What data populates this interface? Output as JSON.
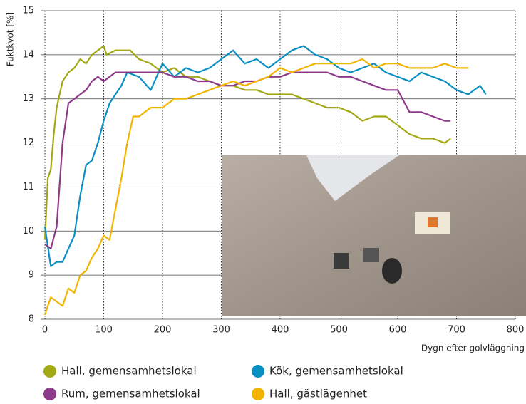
{
  "chart_data": {
    "type": "line",
    "y_label": "Fuktkvot [%]",
    "x_label": "Dygn efter golvläggning",
    "xlim": [
      0,
      800
    ],
    "xticks": [
      0,
      100,
      200,
      300,
      400,
      500,
      600,
      700,
      800
    ],
    "ylim": [
      8,
      15
    ],
    "yticks": [
      8,
      9,
      10,
      11,
      12,
      13,
      14,
      15
    ],
    "grid": true,
    "series": [
      {
        "name": "Hall, gemensamhetslokal",
        "color": "#a3a815",
        "x": [
          0,
          5,
          10,
          15,
          20,
          25,
          30,
          40,
          50,
          60,
          70,
          80,
          90,
          100,
          105,
          120,
          140,
          145,
          160,
          180,
          200,
          220,
          240,
          260,
          280,
          300,
          320,
          340,
          360,
          380,
          400,
          420,
          440,
          460,
          480,
          500,
          520,
          540,
          560,
          580,
          600,
          620,
          640,
          660,
          680,
          690
        ],
        "values": [
          9.8,
          11.2,
          11.4,
          12.2,
          12.8,
          13.1,
          13.4,
          13.6,
          13.7,
          13.9,
          13.8,
          14.0,
          14.1,
          14.2,
          14.0,
          14.1,
          14.1,
          14.1,
          13.9,
          13.8,
          13.6,
          13.7,
          13.5,
          13.5,
          13.4,
          13.3,
          13.3,
          13.2,
          13.2,
          13.1,
          13.1,
          13.1,
          13.0,
          12.9,
          12.8,
          12.8,
          12.7,
          12.5,
          12.6,
          12.6,
          12.4,
          12.2,
          12.1,
          12.1,
          12.0,
          12.1
        ]
      },
      {
        "name": "Kök, gemensamhetslokal",
        "color": "#0a8fc4",
        "x": [
          0,
          10,
          20,
          30,
          40,
          50,
          60,
          70,
          80,
          90,
          100,
          110,
          120,
          130,
          140,
          160,
          180,
          200,
          220,
          240,
          260,
          280,
          300,
          320,
          340,
          360,
          380,
          400,
          420,
          440,
          460,
          480,
          500,
          520,
          540,
          560,
          580,
          600,
          620,
          640,
          660,
          680,
          700,
          720,
          740,
          750
        ],
        "values": [
          10.1,
          9.2,
          9.3,
          9.3,
          9.6,
          9.9,
          10.8,
          11.5,
          11.6,
          12.0,
          12.5,
          12.9,
          13.1,
          13.3,
          13.6,
          13.5,
          13.2,
          13.8,
          13.5,
          13.7,
          13.6,
          13.7,
          13.9,
          14.1,
          13.8,
          13.9,
          13.7,
          13.9,
          14.1,
          14.2,
          14.0,
          13.9,
          13.7,
          13.6,
          13.7,
          13.8,
          13.6,
          13.5,
          13.4,
          13.6,
          13.5,
          13.4,
          13.2,
          13.1,
          13.3,
          13.1
        ]
      },
      {
        "name": "Rum, gemensamhetslokal",
        "color": "#8e3a8a",
        "x": [
          0,
          10,
          20,
          30,
          40,
          50,
          60,
          70,
          80,
          90,
          100,
          110,
          120,
          140,
          160,
          180,
          200,
          220,
          240,
          260,
          280,
          300,
          320,
          340,
          360,
          380,
          400,
          420,
          440,
          460,
          480,
          500,
          520,
          540,
          560,
          580,
          600,
          620,
          640,
          660,
          680,
          690
        ],
        "values": [
          9.7,
          9.6,
          10.1,
          12.0,
          12.9,
          13.0,
          13.1,
          13.2,
          13.4,
          13.5,
          13.4,
          13.5,
          13.6,
          13.6,
          13.6,
          13.6,
          13.6,
          13.5,
          13.5,
          13.4,
          13.4,
          13.3,
          13.3,
          13.4,
          13.4,
          13.5,
          13.5,
          13.6,
          13.6,
          13.6,
          13.6,
          13.5,
          13.5,
          13.4,
          13.3,
          13.2,
          13.2,
          12.7,
          12.7,
          12.6,
          12.5,
          12.5
        ]
      },
      {
        "name": "Hall, gästlägenhet",
        "color": "#f2b400",
        "x": [
          0,
          5,
          10,
          20,
          30,
          40,
          50,
          60,
          70,
          80,
          90,
          100,
          110,
          120,
          130,
          140,
          150,
          160,
          170,
          180,
          200,
          220,
          240,
          260,
          280,
          300,
          320,
          340,
          360,
          380,
          400,
          420,
          440,
          460,
          480,
          500,
          520,
          540,
          560,
          580,
          600,
          620,
          640,
          660,
          680,
          700,
          720
        ],
        "values": [
          8.1,
          8.3,
          8.5,
          8.4,
          8.3,
          8.7,
          8.6,
          9.0,
          9.1,
          9.4,
          9.6,
          9.9,
          9.8,
          10.5,
          11.2,
          12.0,
          12.6,
          12.6,
          12.7,
          12.8,
          12.8,
          13.0,
          13.0,
          13.1,
          13.2,
          13.3,
          13.4,
          13.3,
          13.4,
          13.5,
          13.7,
          13.6,
          13.7,
          13.8,
          13.8,
          13.8,
          13.8,
          13.9,
          13.7,
          13.8,
          13.8,
          13.7,
          13.7,
          13.7,
          13.8,
          13.7,
          13.7
        ]
      }
    ]
  }
}
